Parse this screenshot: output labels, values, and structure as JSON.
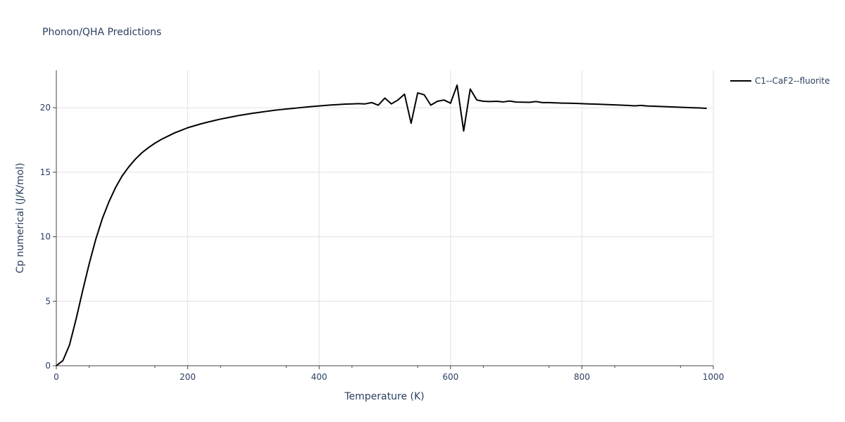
{
  "chart_data": {
    "type": "line",
    "title": "Phonon/QHA Predictions",
    "xlabel": "Temperature (K)",
    "ylabel": "Cp numerical (J/K/mol)",
    "xlim": [
      0,
      1000
    ],
    "ylim": [
      0,
      22.9
    ],
    "x_ticks": [
      "0",
      "200",
      "400",
      "600",
      "800",
      "1000"
    ],
    "x_tick_values": [
      0,
      200,
      400,
      600,
      800,
      1000
    ],
    "y_ticks": [
      "0",
      "5",
      "10",
      "15",
      "20"
    ],
    "y_tick_values": [
      0,
      5,
      10,
      15,
      20
    ],
    "grid": true,
    "legend_position": "top-right",
    "series": [
      {
        "name": "C1--CaF2--fluorite",
        "color": "#000000",
        "x": [
          0,
          10,
          20,
          30,
          40,
          50,
          60,
          70,
          80,
          90,
          100,
          110,
          120,
          130,
          140,
          150,
          160,
          170,
          180,
          190,
          200,
          210,
          220,
          230,
          240,
          250,
          260,
          270,
          280,
          290,
          300,
          310,
          320,
          330,
          340,
          350,
          360,
          370,
          380,
          390,
          400,
          410,
          420,
          430,
          440,
          450,
          460,
          470,
          480,
          490,
          500,
          510,
          520,
          530,
          540,
          550,
          560,
          570,
          580,
          590,
          600,
          610,
          620,
          630,
          640,
          650,
          660,
          670,
          680,
          690,
          700,
          710,
          720,
          730,
          740,
          750,
          760,
          770,
          780,
          790,
          800,
          810,
          820,
          830,
          840,
          850,
          860,
          870,
          880,
          890,
          900,
          910,
          920,
          930,
          940,
          950,
          960,
          970,
          980,
          990
        ],
        "y": [
          0.0,
          0.4,
          1.6,
          3.6,
          5.8,
          7.9,
          9.8,
          11.4,
          12.7,
          13.8,
          14.7,
          15.4,
          16.0,
          16.5,
          16.9,
          17.25,
          17.55,
          17.8,
          18.05,
          18.25,
          18.45,
          18.6,
          18.75,
          18.88,
          19.0,
          19.12,
          19.22,
          19.32,
          19.42,
          19.5,
          19.58,
          19.65,
          19.72,
          19.79,
          19.85,
          19.9,
          19.95,
          20.0,
          20.05,
          20.1,
          20.14,
          20.18,
          20.22,
          20.25,
          20.28,
          20.3,
          20.32,
          20.3,
          20.4,
          20.2,
          20.75,
          20.3,
          20.6,
          21.05,
          18.8,
          21.15,
          21.0,
          20.2,
          20.5,
          20.6,
          20.35,
          21.75,
          18.2,
          21.45,
          20.6,
          20.5,
          20.48,
          20.5,
          20.45,
          20.52,
          20.44,
          20.43,
          20.42,
          20.48,
          20.4,
          20.4,
          20.38,
          20.36,
          20.35,
          20.34,
          20.32,
          20.3,
          20.28,
          20.26,
          20.24,
          20.22,
          20.2,
          20.18,
          20.15,
          20.18,
          20.13,
          20.12,
          20.1,
          20.08,
          20.06,
          20.04,
          20.02,
          20.0,
          19.98,
          19.95
        ]
      }
    ]
  }
}
